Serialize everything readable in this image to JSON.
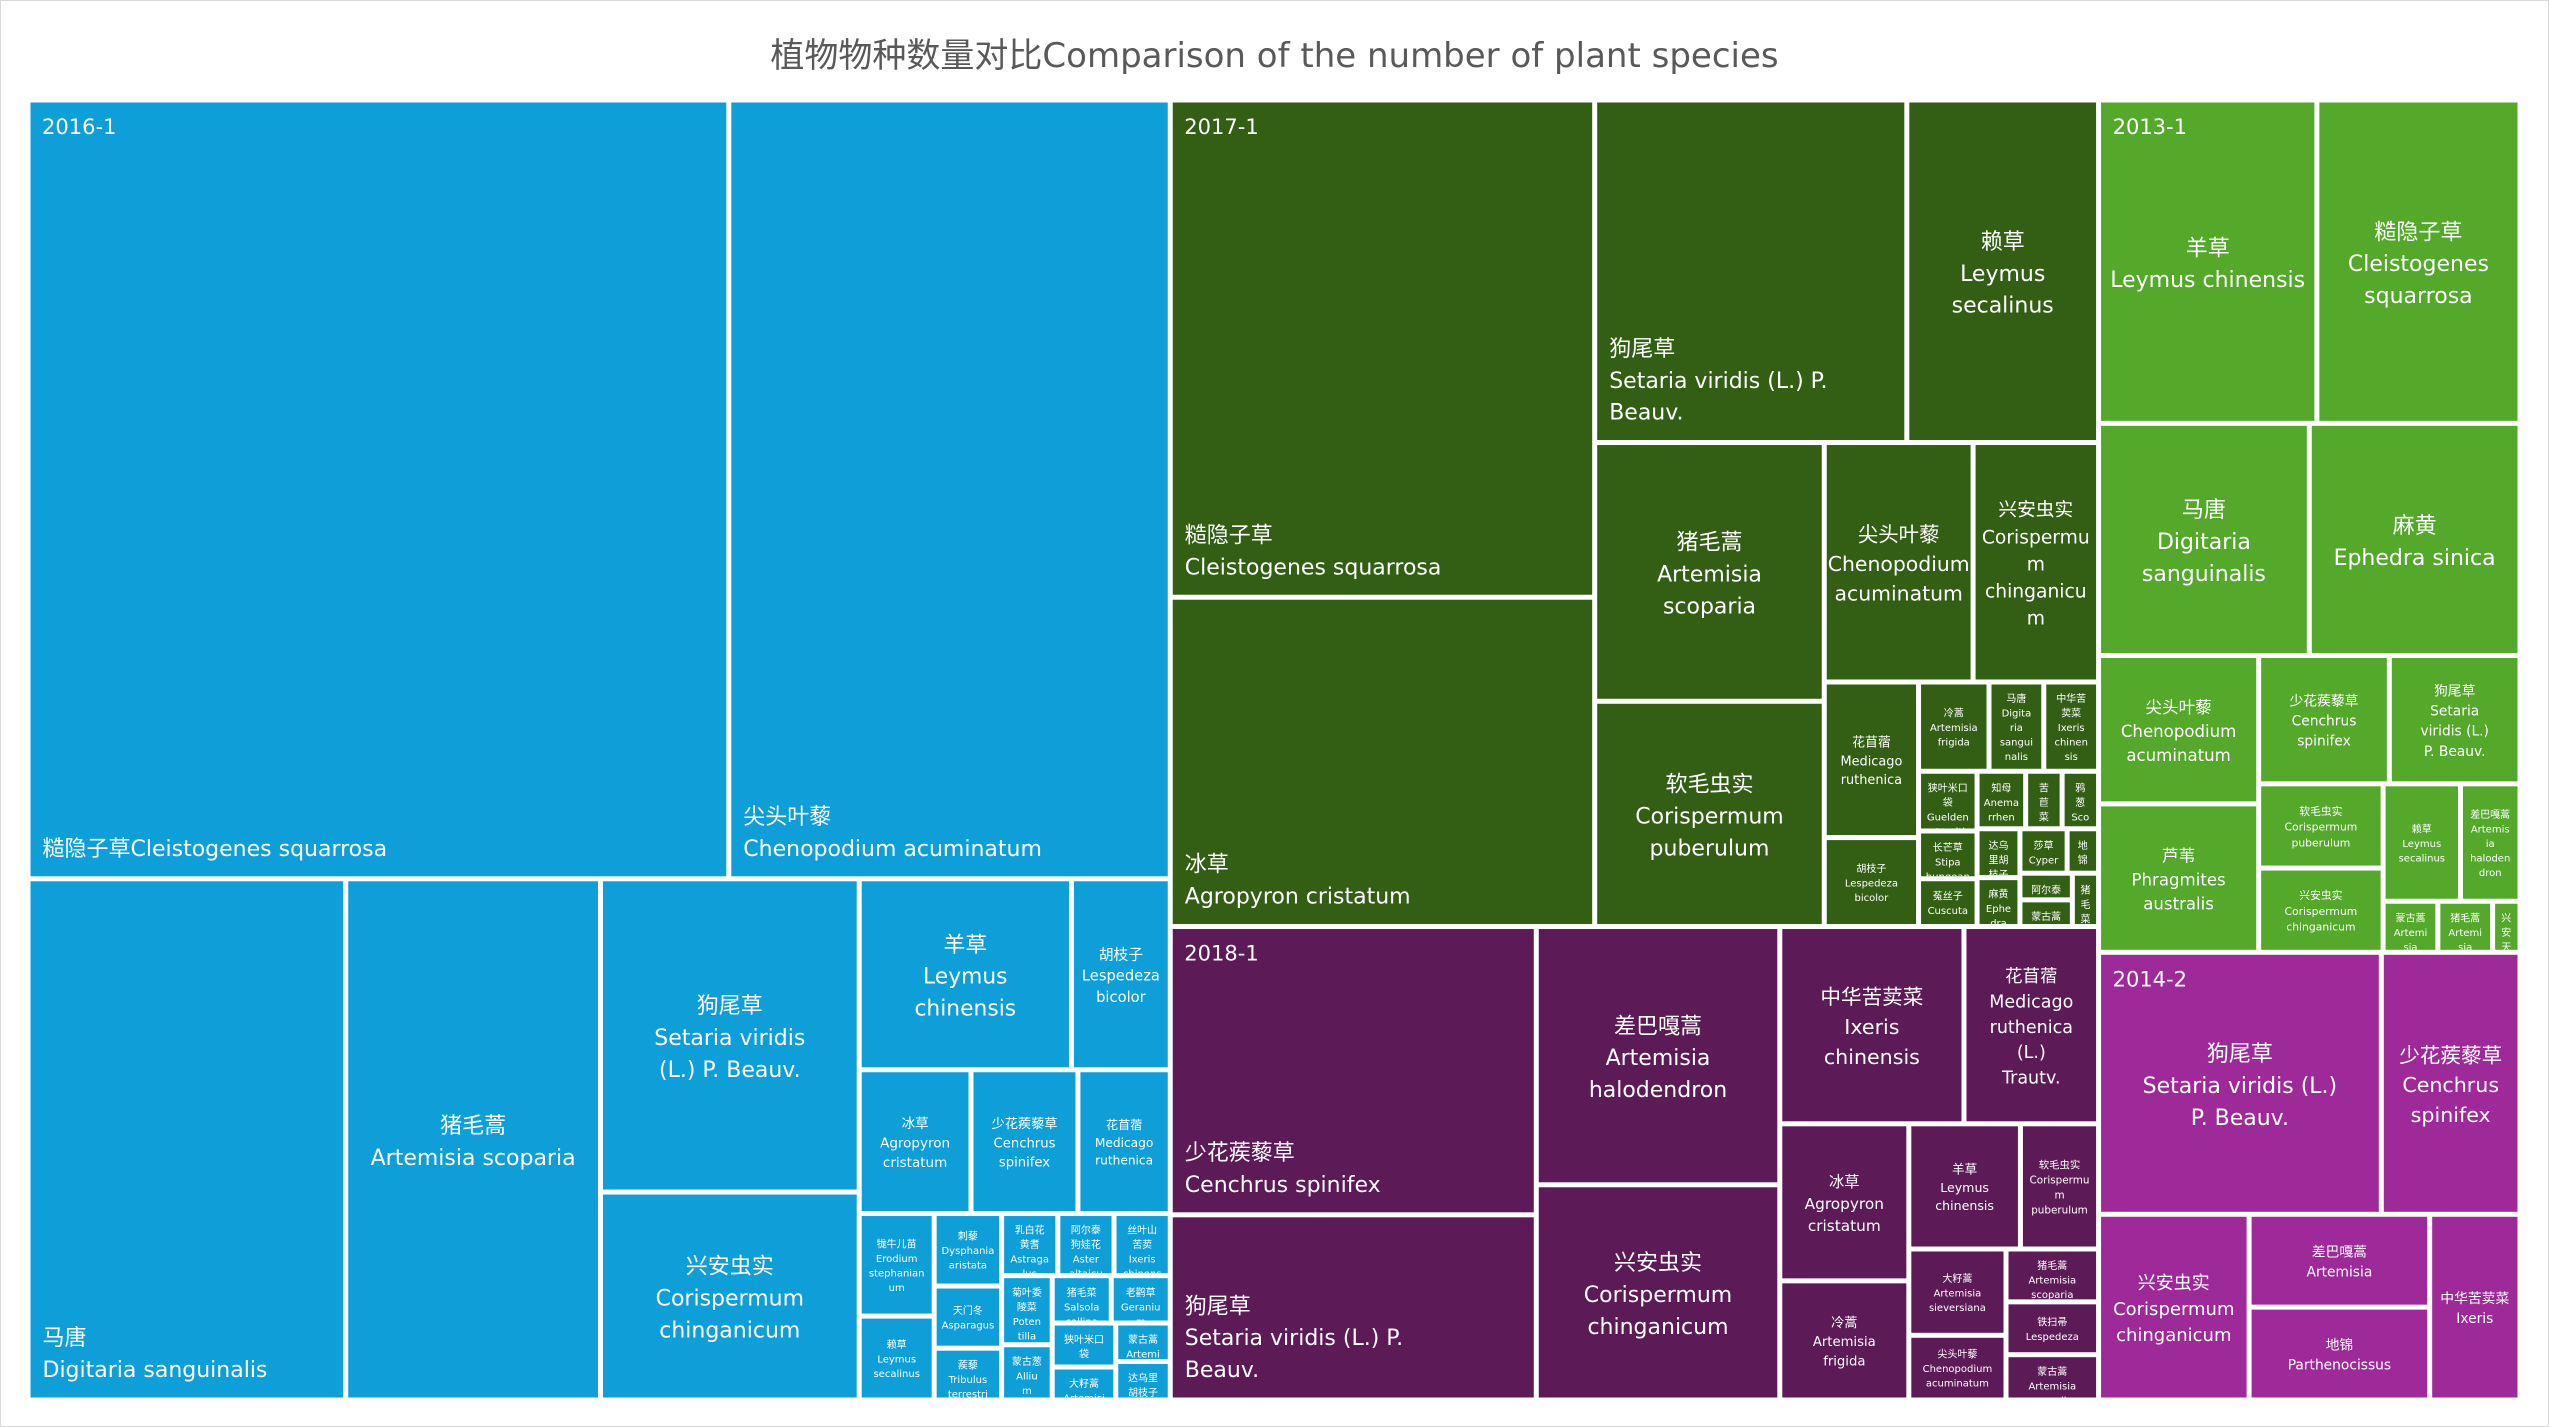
{
  "chart_data": {
    "type": "treemap",
    "title": "植物物种数量对比Comparison of the number of plant species",
    "colors": {
      "2016-1": "#0f9fd8",
      "2017-1": "#335f14",
      "2013-1": "#54a82a",
      "2018-1": "#5c1a57",
      "2014-2": "#9e2a9a"
    },
    "groups": [
      {
        "name": "2016-1",
        "items": [
          {
            "label": "糙隐子草Cleistogenes squarrosa",
            "value": 78.1
          },
          {
            "label": "尖头叶藜Chenopodium acuminatum",
            "value": 49.2
          },
          {
            "label": "马唐Digitaria sanguinalis",
            "value": 23.7
          },
          {
            "label": "猪毛蒿Artemisia scoparia",
            "value": 19.0
          },
          {
            "label": "狗尾草Setaria viridis (L.) P. Beauv.",
            "value": 11.6
          },
          {
            "label": "兴安虫实Corispermum chinganicum",
            "value": 7.7
          },
          {
            "label": "羊草Leymus chinensis",
            "value": 5.8
          },
          {
            "label": "胡枝子Lespedeza bicolor",
            "value": 2.7
          },
          {
            "label": "冰草Agropyron cristatum",
            "value": 2.3
          },
          {
            "label": "少花蒺藜草Cenchrus spinifex",
            "value": 2.2
          },
          {
            "label": "花苜蓿Medicago ruthenica",
            "value": 1.9
          },
          {
            "label": "牻牛儿苗Erodium stephanianum",
            "value": 1.1
          },
          {
            "label": "赖草Leymus secalinus",
            "value": 0.9
          },
          {
            "label": "刺藜Dysphania aristata",
            "value": 0.7
          },
          {
            "label": "天门冬Asparagus",
            "value": 0.6
          },
          {
            "label": "蒺藜Tribulus terrestris",
            "value": 0.5
          },
          {
            "label": "乳白花黄耆Astragalus galactites",
            "value": 0.5
          },
          {
            "label": "阿尔泰狗娃花Aster altaicus",
            "value": 0.5
          },
          {
            "label": "丝叶山苦荬Ixeris chinensis",
            "value": 0.5
          },
          {
            "label": "菊叶委陵菜Potentilla",
            "value": 0.5
          },
          {
            "label": "蒙古葱Allium mongolicum",
            "value": 0.4
          },
          {
            "label": "猪毛菜Salsola collina",
            "value": 0.4
          },
          {
            "label": "老鹳草Geranium",
            "value": 0.4
          },
          {
            "label": "狭叶米口袋Gueldenstaedtia",
            "value": 0.4
          },
          {
            "label": "大籽蒿Artemisia sieversiana",
            "value": 0.3
          },
          {
            "label": "蒙古蒿Artemisia mongolica",
            "value": 0.3
          },
          {
            "label": "达乌里胡枝子Lespedeza davurica",
            "value": 0.3
          }
        ]
      },
      {
        "name": "2017-1",
        "items": [
          {
            "label": "糙隐子草Cleistogenes squarrosa",
            "value": 30.2
          },
          {
            "label": "冰草Agropyron cristatum",
            "value": 20.0
          },
          {
            "label": "狗尾草Setaria viridis (L.) P. Beauv.",
            "value": 15.3
          },
          {
            "label": "赖草Leymus secalinus",
            "value": 9.4
          },
          {
            "label": "猪毛蒿Artemisia scoparia",
            "value": 8.5
          },
          {
            "label": "软毛虫实Corispermum puberulum",
            "value": 7.4
          },
          {
            "label": "尖头叶藜Chenopodium acuminatum",
            "value": 5.1
          },
          {
            "label": "兴安虫实Corispermum chinganicum",
            "value": 4.3
          },
          {
            "label": "胡枝子Lespedeza bicolor",
            "value": 1.2
          },
          {
            "label": "花苜蓿Medicago ruthenica",
            "value": 2.1
          },
          {
            "label": "冷蒿Artemisia frigida",
            "value": 0.9
          },
          {
            "label": "马唐Digitaria sanguinalis",
            "value": 0.7
          },
          {
            "label": "中华苦荬菜Ixeris chinensis",
            "value": 0.7
          },
          {
            "label": "狭叶米口袋Gueldenstaedtia",
            "value": 0.5
          },
          {
            "label": "长芒草Stipa bungeana",
            "value": 0.4
          },
          {
            "label": "菟丝子Cuscuta",
            "value": 0.4
          },
          {
            "label": "知母Anemarrhena",
            "value": 0.4
          },
          {
            "label": "苦苣菜Sonchus",
            "value": 0.3
          },
          {
            "label": "鸦葱Scorzonera",
            "value": 0.3
          },
          {
            "label": "达乌里胡枝子Lespedeza davurica",
            "value": 0.3
          },
          {
            "label": "麻黄Ephedra",
            "value": 0.3
          },
          {
            "label": "莎草Cyperus",
            "value": 0.3
          },
          {
            "label": "地锦Euphorbia humifusa",
            "value": 0.2
          },
          {
            "label": "阿尔泰狗娃花Aster altaicus",
            "value": 0.2
          },
          {
            "label": "蒙古蒿Artemisia mongolica",
            "value": 0.2
          },
          {
            "label": "猪毛菜Salsola collina",
            "value": 0.2
          }
        ]
      },
      {
        "name": "2013-1",
        "items": [
          {
            "label": "羊草Leymus chinensis",
            "value": 10.1
          },
          {
            "label": "糙隐子草Cleistogenes squarrosa",
            "value": 9.4
          },
          {
            "label": "马唐Digitaria sanguinalis",
            "value": 7.0
          },
          {
            "label": "麻黄Ephedra sinica",
            "value": 7.0
          },
          {
            "label": "尖头叶藜Chenopodium acuminatum",
            "value": 3.4
          },
          {
            "label": "芦苇Phragmites australis",
            "value": 3.4
          },
          {
            "label": "少花蒺藜草Cenchrus spinifex",
            "value": 2.4
          },
          {
            "label": "狗尾草Setaria viridis (L.) P. Beauv.",
            "value": 2.4
          },
          {
            "label": "软毛虫实Corispermum puberulum",
            "value": 1.5
          },
          {
            "label": "兴安虫实Corispermum chinganicum",
            "value": 1.5
          },
          {
            "label": "赖草Leymus secalinus",
            "value": 1.3
          },
          {
            "label": "蒙古蒿Artemisia mongolica",
            "value": 0.4
          },
          {
            "label": "差巴嘎蒿Artemisia halodendron",
            "value": 1.0
          },
          {
            "label": "猪毛蒿Artemisia scoparia",
            "value": 0.4
          },
          {
            "label": "兴安天门冬Asparagus dauricus",
            "value": 0.2
          }
        ]
      },
      {
        "name": "2018-1",
        "items": [
          {
            "label": "少花蒺藜草Cenchrus spinifex",
            "value": 15.1
          },
          {
            "label": "差巴嘎蒿Artemisia halodendron",
            "value": 9.0
          },
          {
            "label": "狗尾草Setaria viridis (L.) P. Beauv.",
            "value": 9.7
          },
          {
            "label": "兴安虫实Corispermum chinganicum",
            "value": 7.5
          },
          {
            "label": "中华苦荬菜Ixeris chinensis",
            "value": 5.2
          },
          {
            "label": "花苜蓿Medicago ruthenica (L.) Trautv.",
            "value": 3.8
          },
          {
            "label": "冰草Agropyron cristatum",
            "value": 2.9
          },
          {
            "label": "冷蒿Artemisia frigida",
            "value": 2.2
          },
          {
            "label": "羊草Leymus chinensis",
            "value": 2.0
          },
          {
            "label": "大籽蒿Artemisia sieversiana",
            "value": 1.2
          },
          {
            "label": "软毛虫实Corispermum puberulum",
            "value": 1.4
          },
          {
            "label": "尖头叶藜Chenopodium acuminatum",
            "value": 0.9
          },
          {
            "label": "猪毛蒿Artemisia scoparia",
            "value": 0.7
          },
          {
            "label": "铁扫帚Lespedeza",
            "value": 0.7
          },
          {
            "label": "蒙古蒿Artemisia mongolica",
            "value": 0.6
          }
        ]
      },
      {
        "name": "2014-2",
        "items": [
          {
            "label": "狗尾草Setaria viridis (L.) P. Beauv.",
            "value": 10.6
          },
          {
            "label": "少花蒺藜草Cenchrus spinifex",
            "value": 5.2
          },
          {
            "label": "兴安虫实Corispermum chinganicum",
            "value": 4.0
          },
          {
            "label": "差巴嘎蒿Artemisia",
            "value": 2.4
          },
          {
            "label": "地锦Parthenocissus",
            "value": 2.4
          },
          {
            "label": "中华苦荬菜Ixeris",
            "value": 2.4
          }
        ]
      }
    ]
  }
}
